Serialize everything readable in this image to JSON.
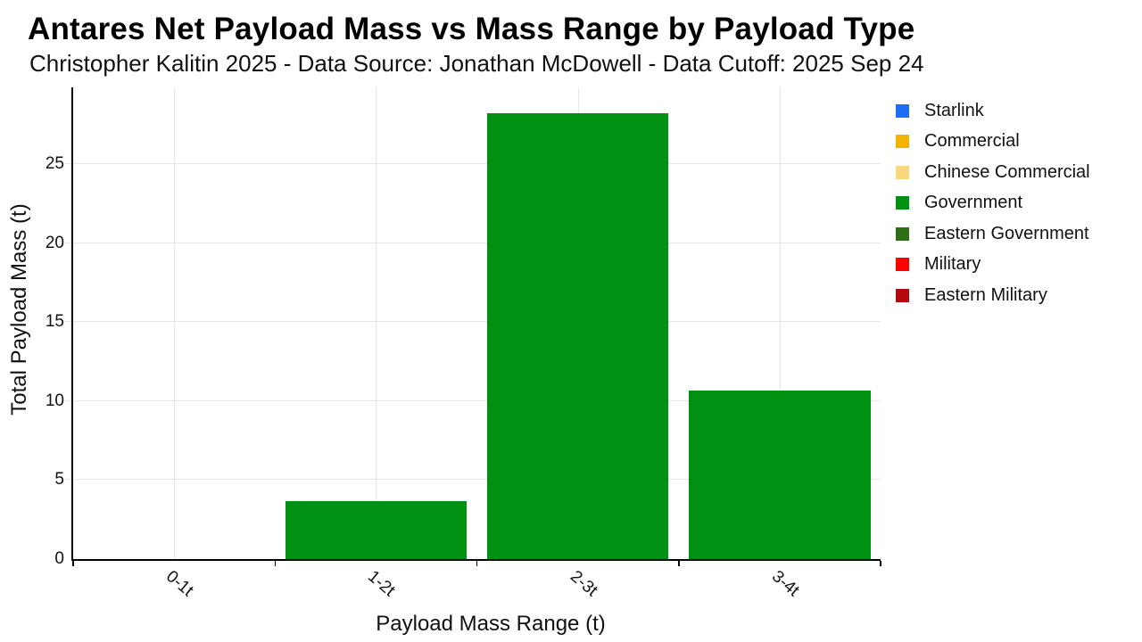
{
  "chart_data": {
    "type": "bar",
    "title": "Antares Net Payload Mass vs Mass Range by Payload Type",
    "subtitle": "Christopher Kalitin 2025 - Data Source: Jonathan McDowell - Data Cutoff: 2025 Sep 24",
    "xlabel": "Payload Mass Range (t)",
    "ylabel": "Total Payload Mass (t)",
    "categories": [
      "0-1t",
      "1-2t",
      "2-3t",
      "3-4t"
    ],
    "yticks": [
      0,
      5,
      10,
      15,
      20,
      25
    ],
    "ylim": [
      0,
      29.85
    ],
    "grid": true,
    "stacked": true,
    "legend_position": "right",
    "series": [
      {
        "name": "Starlink",
        "color": "#1b6ef3",
        "values": [
          0,
          0,
          0,
          0
        ]
      },
      {
        "name": "Commercial",
        "color": "#f2b400",
        "values": [
          0,
          0,
          0,
          0
        ]
      },
      {
        "name": "Chinese Commercial",
        "color": "#f8d87a",
        "values": [
          0,
          0,
          0,
          0
        ]
      },
      {
        "name": "Government",
        "color": "#009112",
        "values": [
          0,
          3.65,
          28.2,
          10.65
        ]
      },
      {
        "name": "Eastern Government",
        "color": "#2e6e14",
        "values": [
          0,
          0,
          0,
          0
        ]
      },
      {
        "name": "Military",
        "color": "#fe0000",
        "values": [
          0,
          0,
          0,
          0
        ]
      },
      {
        "name": "Eastern Military",
        "color": "#b20a0a",
        "values": [
          0,
          0,
          0,
          0
        ]
      }
    ],
    "axis_color": "#000000",
    "gridline_color": "#e6e6e6",
    "background_color": "#ffffff",
    "bar_width_fraction": 0.9
  }
}
